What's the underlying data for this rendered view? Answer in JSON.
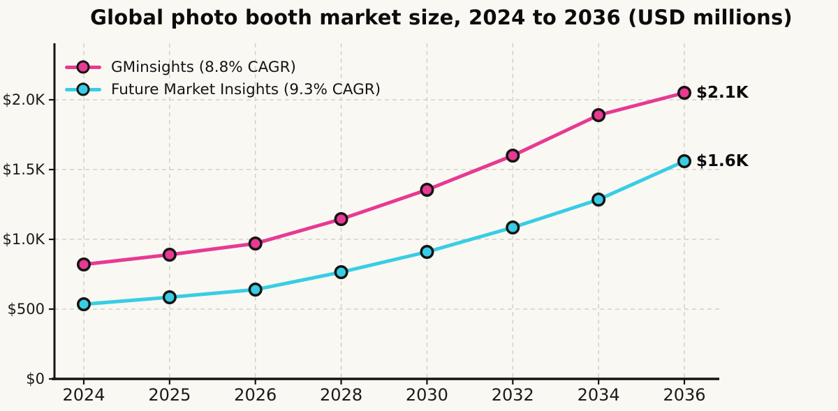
{
  "title": "Global photo booth market size, 2024 to 2036 (USD millions)",
  "colors": {
    "background": "#f9f8f3",
    "axis": "#141414",
    "grid": "#d2d1ca",
    "text": "#1a1a1a",
    "marker_edge": "#141414"
  },
  "chart_data": {
    "type": "line",
    "title": "Global photo booth market size, 2024 to 2036 (USD millions)",
    "categories": [
      "2024",
      "2025",
      "2026",
      "2028",
      "2030",
      "2032",
      "2034",
      "2036"
    ],
    "series": [
      {
        "name": "GMinsights (8.8% CAGR)",
        "color": "#e73a92",
        "values": [
          820,
          890,
          970,
          1145,
          1355,
          1600,
          1890,
          2050
        ],
        "end_label": "$2.1K"
      },
      {
        "name": "Future Market Insights (9.3% CAGR)",
        "color": "#38cde4",
        "values": [
          535,
          585,
          640,
          765,
          910,
          1085,
          1285,
          1560
        ],
        "end_label": "$1.6K"
      }
    ],
    "yticks": [
      {
        "value": 0,
        "label": "$0"
      },
      {
        "value": 500,
        "label": "$500"
      },
      {
        "value": 1000,
        "label": "$1.0K"
      },
      {
        "value": 1500,
        "label": "$1.5K"
      },
      {
        "value": 2000,
        "label": "$2.0K"
      }
    ],
    "ylim": [
      0,
      2405
    ],
    "grid": "dashed",
    "legend_position": "upper-left",
    "marker": "circle"
  }
}
